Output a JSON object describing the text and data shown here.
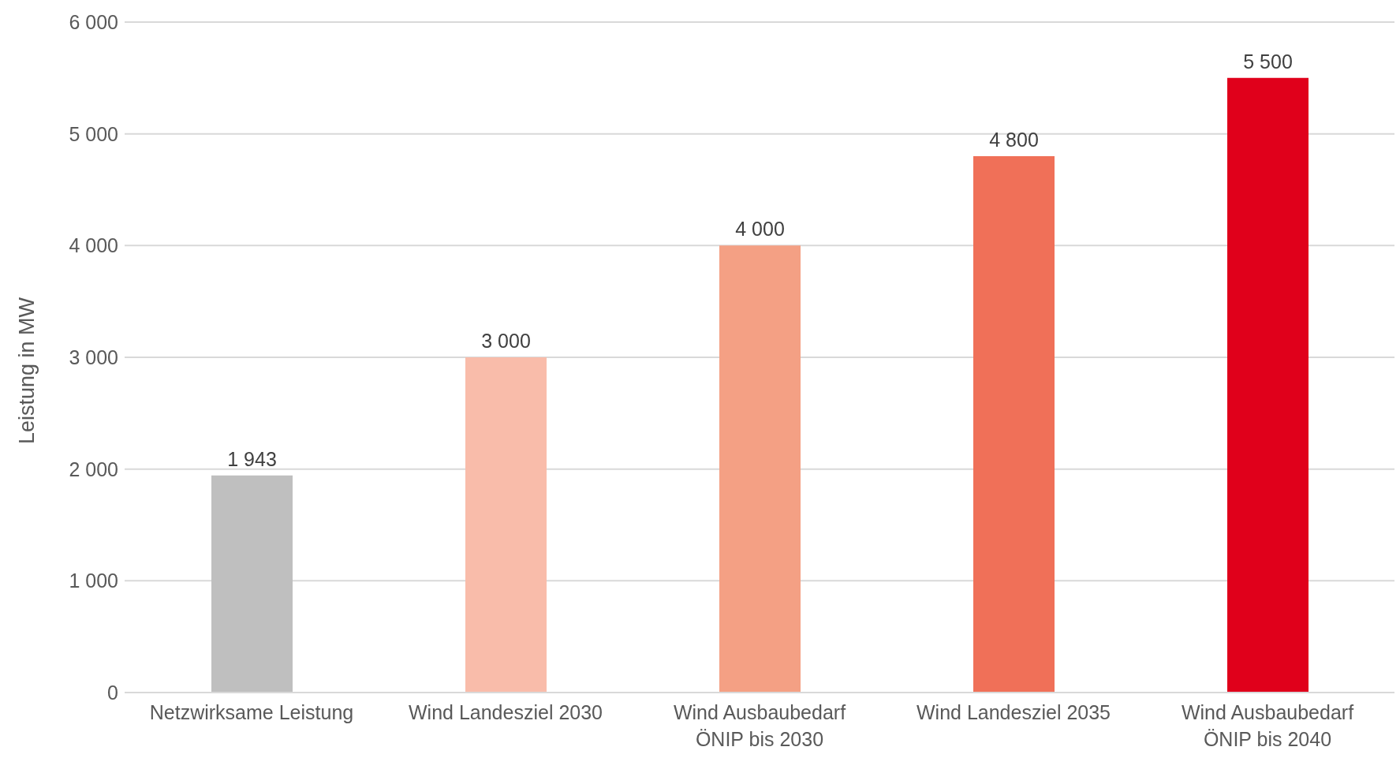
{
  "chart_data": {
    "type": "bar",
    "ylabel": "Leistung in MW",
    "categories": [
      "Netzwirksame Leistung",
      "Wind Landesziel 2030",
      "Wind Ausbaubedarf ÖNIP bis 2030",
      "Wind Landesziel 2035",
      "Wind Ausbaubedarf ÖNIP bis 2040"
    ],
    "values": [
      1943,
      3000,
      4000,
      4800,
      5500
    ],
    "colors": [
      "#bfbfbf",
      "#f9bcaa",
      "#f4a084",
      "#f07058",
      "#e0001b"
    ],
    "value_labels": [
      "1 943",
      "3 000",
      "4 000",
      "4 800",
      "5 500"
    ],
    "ylim": [
      0,
      6000
    ],
    "yticks": [
      {
        "value": 0,
        "label": "0"
      },
      {
        "value": 1000,
        "label": "1 000"
      },
      {
        "value": 2000,
        "label": "2 000"
      },
      {
        "value": 3000,
        "label": "3 000"
      },
      {
        "value": 4000,
        "label": "4 000"
      },
      {
        "value": 5000,
        "label": "5 000"
      },
      {
        "value": 6000,
        "label": "6 000"
      }
    ],
    "grid": "y"
  }
}
